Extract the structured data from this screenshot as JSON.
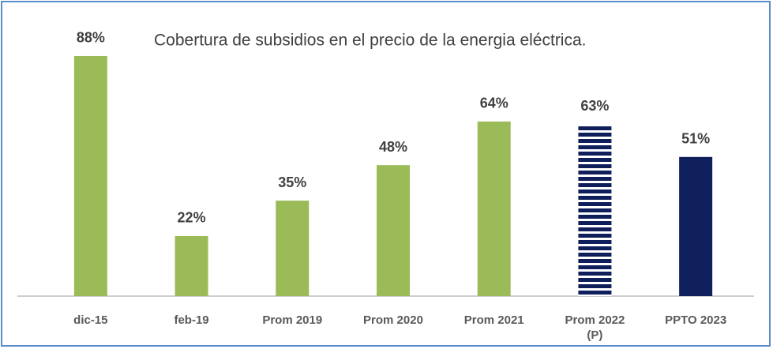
{
  "chart_data": {
    "type": "bar",
    "title": "Cobertura de subsidios en el precio de la energia eléctrica.",
    "categories": [
      "dic-15",
      "feb-19",
      "Prom 2019",
      "Prom 2020",
      "Prom 2021",
      "Prom 2022 (P)",
      "PPTO 2023"
    ],
    "values": [
      88,
      22,
      35,
      48,
      64,
      63,
      51
    ],
    "value_labels": [
      "88%",
      "22%",
      "35%",
      "48%",
      "64%",
      "63%",
      "51%"
    ],
    "colors": [
      "#9bbb59",
      "#9bbb59",
      "#9bbb59",
      "#9bbb59",
      "#9bbb59",
      "#0f1f5c",
      "#0f1f5c"
    ],
    "hatched": [
      false,
      false,
      false,
      false,
      false,
      true,
      false
    ],
    "ylim": [
      0,
      100
    ]
  }
}
